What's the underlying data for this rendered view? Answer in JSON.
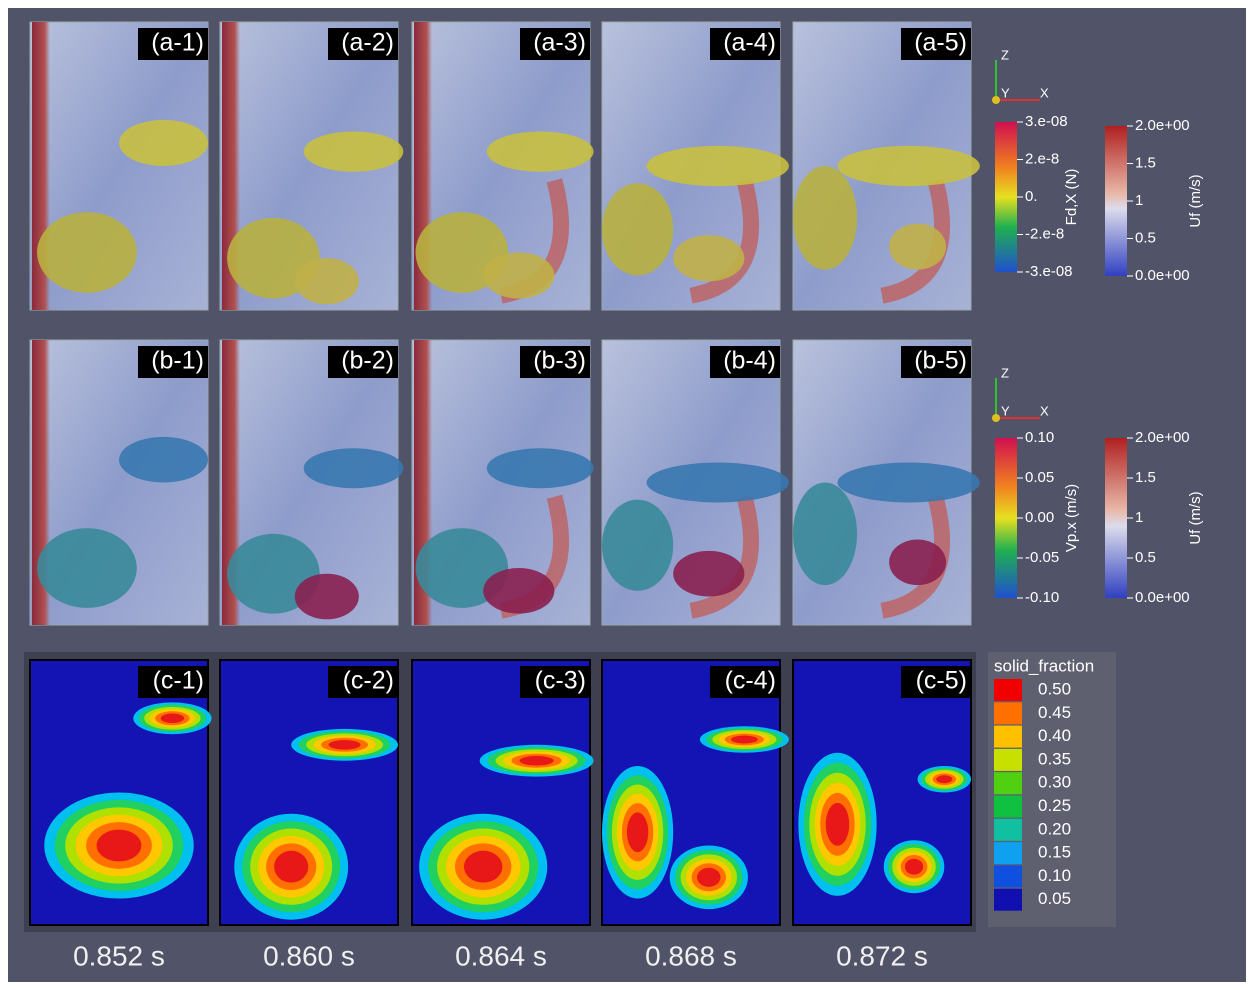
{
  "rows": [
    {
      "panels": [
        "(a-1)",
        "(a-2)",
        "(a-3)",
        "(a-4)",
        "(a-5)"
      ]
    },
    {
      "panels": [
        "(b-1)",
        "(b-2)",
        "(b-3)",
        "(b-4)",
        "(b-5)"
      ]
    },
    {
      "panels": [
        "(c-1)",
        "(c-2)",
        "(c-3)",
        "(c-4)",
        "(c-5)"
      ]
    }
  ],
  "axes_glyph": {
    "z": "Z",
    "y": "Y",
    "x": "X"
  },
  "colorbars": [
    {
      "title": "Fd,X (N)",
      "labels": [
        "3.e-08",
        "2.e-8",
        "0.",
        "-2.e-8",
        "-3.e-08"
      ]
    },
    {
      "title": "Uf (m/s)",
      "labels": [
        "2.0e+00",
        "1.5",
        "1",
        "0.5",
        "0.0e+00"
      ]
    },
    {
      "title": "Vp.x (m/s)",
      "labels": [
        "0.10",
        "0.05",
        "0.00",
        "-0.05",
        "-0.10"
      ]
    },
    {
      "title": "Uf (m/s)",
      "labels": [
        "2.0e+00",
        "1.5",
        "1",
        "0.5",
        "0.0e+00"
      ]
    }
  ],
  "legend": {
    "title": "solid_fraction",
    "labels": [
      "0.50",
      "0.45",
      "0.40",
      "0.35",
      "0.30",
      "0.25",
      "0.20",
      "0.15",
      "0.10",
      "0.05"
    ]
  },
  "times": [
    "0.852 s",
    "0.860 s",
    "0.864 s",
    "0.868 s",
    "0.872 s"
  ]
}
